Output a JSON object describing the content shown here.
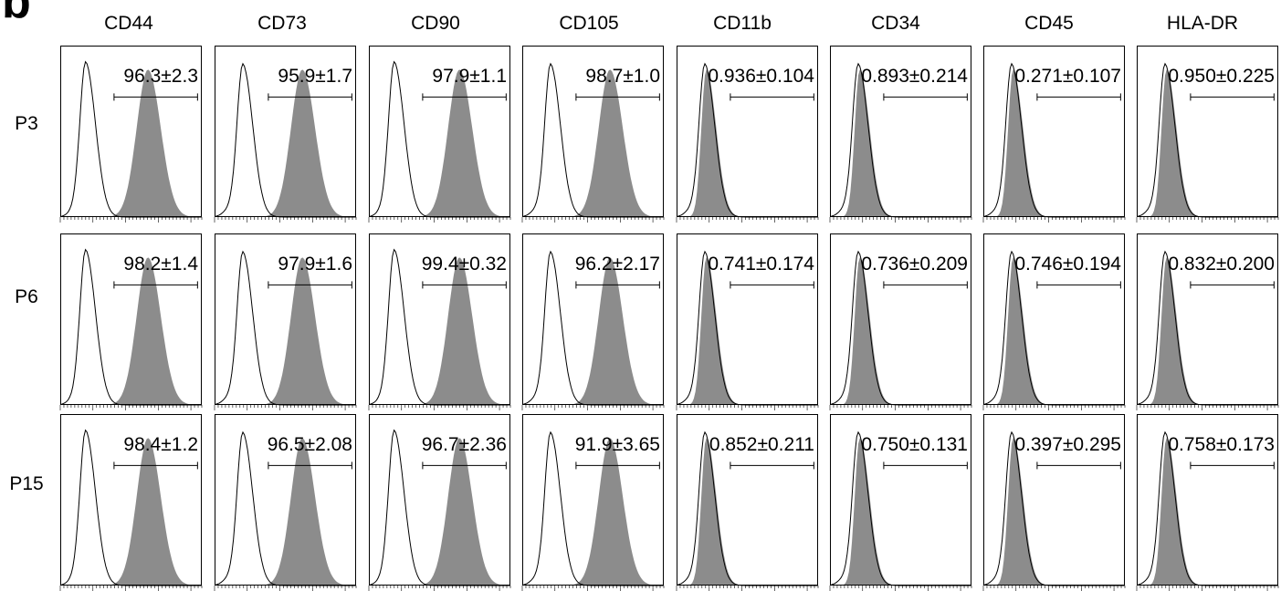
{
  "figure": {
    "panel_letter": "b"
  },
  "chart_data": {
    "type": "histogram-grid",
    "columns": [
      "CD44",
      "CD73",
      "CD90",
      "CD105",
      "CD11b",
      "CD34",
      "CD45",
      "HLA-DR"
    ],
    "rows": [
      "P3",
      "P6",
      "P15"
    ],
    "grid": false,
    "legend": "none",
    "stats": [
      [
        "96.3±2.3",
        "95.9±1.7",
        "97.9±1.1",
        "98.7±1.0",
        "0.936±0.104",
        "0.893±0.214",
        "0.271±0.107",
        "0.950±0.225"
      ],
      [
        "98.2±1.4",
        "97.9±1.6",
        "99.4±0.32",
        "96.2±2.17",
        "0.741±0.174",
        "0.736±0.209",
        "0.746±0.194",
        "0.832±0.200"
      ],
      [
        "98.4±1.2",
        "96.5±2.08",
        "96.7±2.36",
        "91.9±3.65",
        "0.852±0.211",
        "0.750±0.131",
        "0.397±0.295",
        "0.758±0.173"
      ]
    ],
    "positive_markers": [
      "CD44",
      "CD73",
      "CD90",
      "CD105"
    ],
    "negative_markers": [
      "CD11b",
      "CD34",
      "CD45",
      "HLA-DR"
    ],
    "series_colors": {
      "isotype": "#000000",
      "stained": "#8c8c8c"
    }
  }
}
